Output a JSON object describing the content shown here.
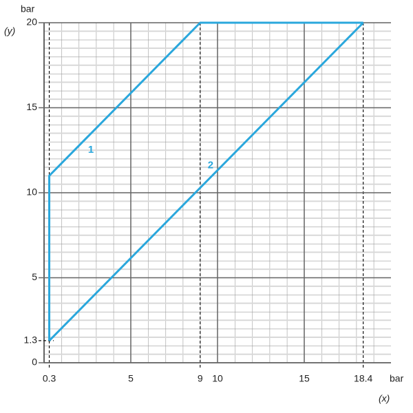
{
  "chart_data": {
    "type": "line",
    "x_unit": "bar",
    "x_label": "(x)",
    "y_unit": "bar",
    "y_label": "(y)",
    "series": [
      {
        "name": "1",
        "color": "#2aa7dc",
        "x": [
          0.3,
          0.3,
          9,
          18.4
        ],
        "values": [
          1.3,
          11,
          20,
          20
        ]
      },
      {
        "name": "2",
        "color": "#2aa7dc",
        "x": [
          0.3,
          18.4
        ],
        "values": [
          1.3,
          20
        ]
      }
    ],
    "xlim": [
      0,
      20
    ],
    "ylim": [
      0,
      20
    ],
    "xticks": [
      0.3,
      5,
      9,
      10,
      15,
      18.4
    ],
    "yticks": [
      0,
      1.3,
      5,
      10,
      15,
      20
    ],
    "grid": true,
    "annotations": [
      {
        "text": "1",
        "x": 2.7,
        "y": 12.5
      },
      {
        "text": "2",
        "x": 9.6,
        "y": 11.6
      }
    ]
  }
}
